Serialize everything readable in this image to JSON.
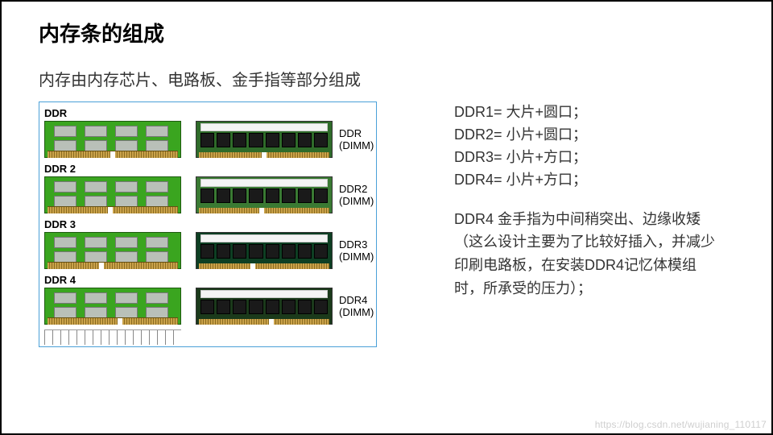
{
  "title": "内存条的组成",
  "subtitle": "内存由内存芯片、电路板、金手指等部分组成",
  "diagram": {
    "border_color": "#4aa0d8",
    "rows": [
      {
        "left_label": "DDR",
        "right_label": "DDR (DIMM)",
        "left_pcb_color": "#3aa51f",
        "right_pcb_color": "#2f6b2a",
        "notch_pos_pct": 50
      },
      {
        "left_label": "DDR 2",
        "right_label": "DDR2 (DIMM)",
        "left_pcb_color": "#3aa51f",
        "right_pcb_color": "#3a7a33",
        "notch_pos_pct": 48
      },
      {
        "left_label": "DDR 3",
        "right_label": "DDR3 (DIMM)",
        "left_pcb_color": "#3aa51f",
        "right_pcb_color": "#0e3f23",
        "notch_pos_pct": 42
      },
      {
        "left_label": "DDR 4",
        "right_label": "DDR4 (DIMM)",
        "left_pcb_color": "#3aa51f",
        "right_pcb_color": "#1b3a1b",
        "notch_pos_pct": 55
      }
    ]
  },
  "specs": [
    "DDR1= 大片+圆口；",
    "DDR2= 小片+圆口；",
    "DDR3= 小片+方口；",
    "DDR4= 小片+方口；"
  ],
  "note": "DDR4 金手指为中间稍突出、边缘收矮（这么设计主要为了比较好插入，并减少印刷电路板，在安装DDR4记忆体模组时，所承受的压力）；",
  "watermark": "https://blog.csdn.net/wujianing_110117",
  "colors": {
    "text": "#333333",
    "title": "#000000",
    "background": "#ffffff",
    "gold": "#caa24a",
    "watermark": "#cfcfcf"
  },
  "typography": {
    "title_fontsize_pt": 20,
    "subtitle_fontsize_pt": 15,
    "body_fontsize_pt": 13
  }
}
